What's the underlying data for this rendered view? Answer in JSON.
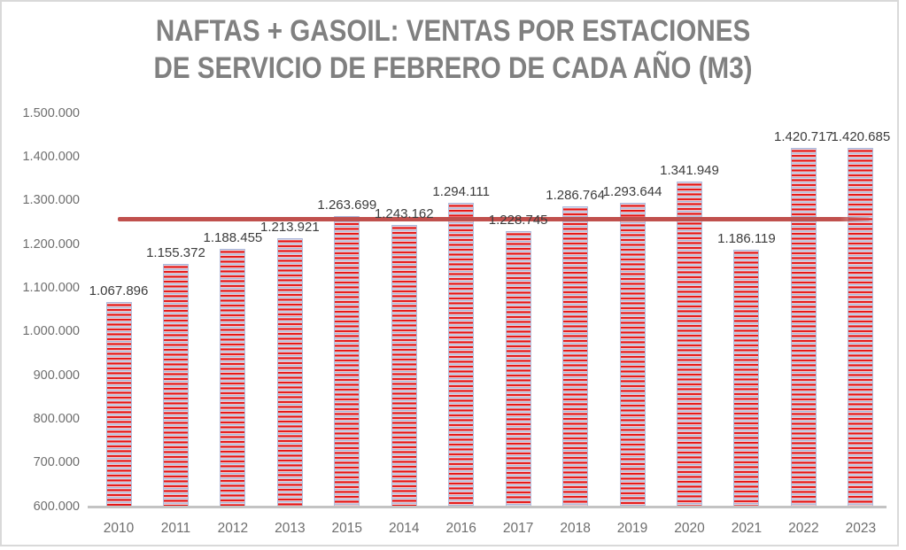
{
  "title": {
    "line1": "NAFTAS + GASOIL: VENTAS POR ESTACIONES",
    "line2": "DE SERVICIO DE FEBRERO DE CADA AÑO (M3)"
  },
  "colors": {
    "title_text": "#808080",
    "axis_text": "#6e6e6e",
    "data_label_text": "#3c3c3c",
    "bar_red": "#e31414",
    "bar_blue": "#a9b4d8",
    "reference_line": "#c0504d",
    "axis_line": "#c3c3c3",
    "frame_border": "#d9d9d9"
  },
  "chart_data": {
    "type": "bar",
    "title": "NAFTAS + GASOIL: VENTAS POR ESTACIONES DE SERVICIO DE FEBRERO DE CADA AÑO (M3)",
    "categories": [
      "2010",
      "2011",
      "2012",
      "2013",
      "2015",
      "2014",
      "2016",
      "2017",
      "2018",
      "2019",
      "2020",
      "2021",
      "2022",
      "2023"
    ],
    "values": [
      1067896,
      1155372,
      1188455,
      1213921,
      1263699,
      1243162,
      1294111,
      1228745,
      1286764,
      1293644,
      1341949,
      1186119,
      1420717,
      1420685
    ],
    "data_labels": [
      "1.067.896",
      "1.155.372",
      "1.188.455",
      "1.213.921",
      "1.263.699",
      "1.243.162",
      "1.294.111",
      "1.228.745",
      "1.286.764",
      "1.293.644",
      "1.341.949",
      "1.186.119",
      "1.420.717",
      "1.420.685"
    ],
    "xlabel": "",
    "ylabel": "",
    "ylim": [
      600000,
      1500000
    ],
    "ytick_step": 100000,
    "ytick_labels": [
      "600.000",
      "700.000",
      "800.000",
      "900.000",
      "1.000.000",
      "1.100.000",
      "1.200.000",
      "1.300.000",
      "1.400.000",
      "1.500.000"
    ],
    "grid": false,
    "legend": false,
    "reference_line": {
      "value": 1257517
    }
  }
}
